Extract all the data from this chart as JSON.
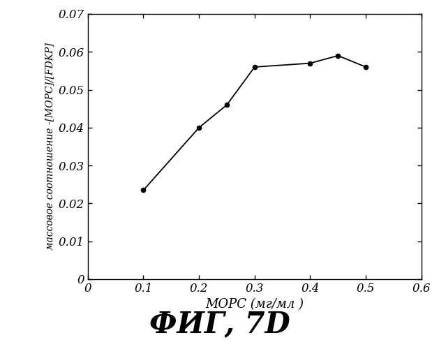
{
  "x": [
    0.1,
    0.2,
    0.25,
    0.3,
    0.4,
    0.45,
    0.5
  ],
  "y": [
    0.0235,
    0.04,
    0.046,
    0.056,
    0.057,
    0.059,
    0.056
  ],
  "xlabel": "МОРС (мг/мл )",
  "ylabel": "массовое соотношение -[МОРС]/[FDKP]",
  "xlim": [
    0,
    0.6
  ],
  "ylim": [
    0,
    0.07
  ],
  "xticks": [
    0,
    0.1,
    0.2,
    0.3,
    0.4,
    0.5,
    0.6
  ],
  "yticks": [
    0,
    0.01,
    0.02,
    0.03,
    0.04,
    0.05,
    0.06,
    0.07
  ],
  "line_color": "#000000",
  "marker": "o",
  "marker_size": 4.5,
  "marker_facecolor": "#000000",
  "caption": "ФИГ, 7D",
  "caption_fontsize": 30,
  "xlabel_fontsize": 13,
  "ylabel_fontsize": 10,
  "tick_fontsize": 12
}
